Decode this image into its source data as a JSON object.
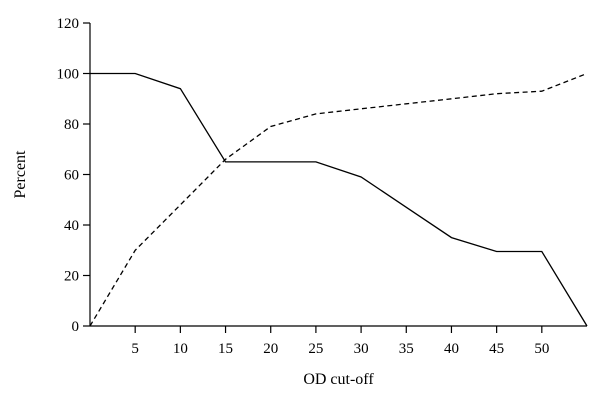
{
  "chart_data": {
    "type": "line",
    "title": "",
    "xlabel": "OD cut-off",
    "ylabel": "Percent",
    "xlim": [
      0,
      55
    ],
    "ylim": [
      0,
      120
    ],
    "x_ticks": [
      5,
      10,
      15,
      20,
      25,
      30,
      35,
      40,
      45,
      50
    ],
    "y_ticks": [
      0,
      20,
      40,
      60,
      80,
      100,
      120
    ],
    "grid": false,
    "legend": "none",
    "series": [
      {
        "style": "solid",
        "color": "#000000",
        "x": [
          0,
          5,
          10,
          15,
          20,
          25,
          30,
          35,
          40,
          45,
          50,
          55
        ],
        "y": [
          100,
          100,
          94,
          65,
          65,
          65,
          59,
          47,
          35,
          29.5,
          29.5,
          0
        ]
      },
      {
        "style": "dashed",
        "color": "#000000",
        "x": [
          0,
          5,
          10,
          15,
          20,
          25,
          30,
          35,
          40,
          45,
          50,
          55
        ],
        "y": [
          0,
          30,
          48,
          66,
          79,
          84,
          86,
          88,
          90,
          92,
          93,
          100
        ]
      }
    ]
  }
}
